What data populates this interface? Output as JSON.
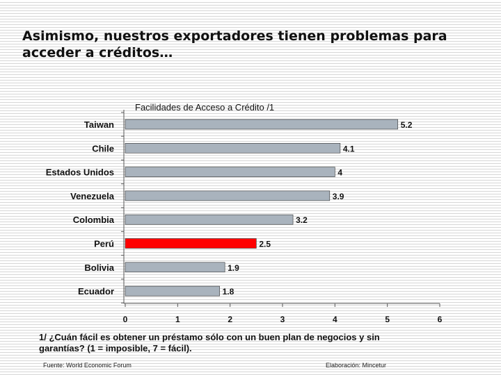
{
  "slide": {
    "title_line1": "Asimismo, nuestros exportadores tienen problemas para",
    "title_line2": "acceder a créditos…",
    "footnote_line1": "1/ ¿Cuán fácil es obtener un préstamo sólo con un buen plan de negocios y sin",
    "footnote_line2": "garantías? (1 = imposible, 7 = fácil).",
    "source": "Fuente: World Economic Forum",
    "credit": "Elaboración: Mincetur"
  },
  "chart_data": {
    "type": "bar",
    "orientation": "horizontal",
    "title": "Facilidades de Acceso a Crédito /1",
    "categories": [
      "Taiwan",
      "Chile",
      "Estados Unidos",
      "Venezuela",
      "Colombia",
      "Perú",
      "Bolivia",
      "Ecuador"
    ],
    "values": [
      5.2,
      4.1,
      4,
      3.9,
      3.2,
      2.5,
      1.9,
      1.8
    ],
    "value_labels": [
      "5.2",
      "4.1",
      "4",
      "3.9",
      "3.2",
      "2.5",
      "1.9",
      "1.8"
    ],
    "xlim": [
      0,
      6
    ],
    "xticks": [
      "0",
      "1",
      "2",
      "3",
      "4",
      "5",
      "6"
    ],
    "grid": false,
    "colors": {
      "bar": "#a9b3bd",
      "highlight": "#ff0000",
      "highlight_category": "Perú",
      "bar_stroke": "#333333",
      "axis": "#555555"
    }
  }
}
